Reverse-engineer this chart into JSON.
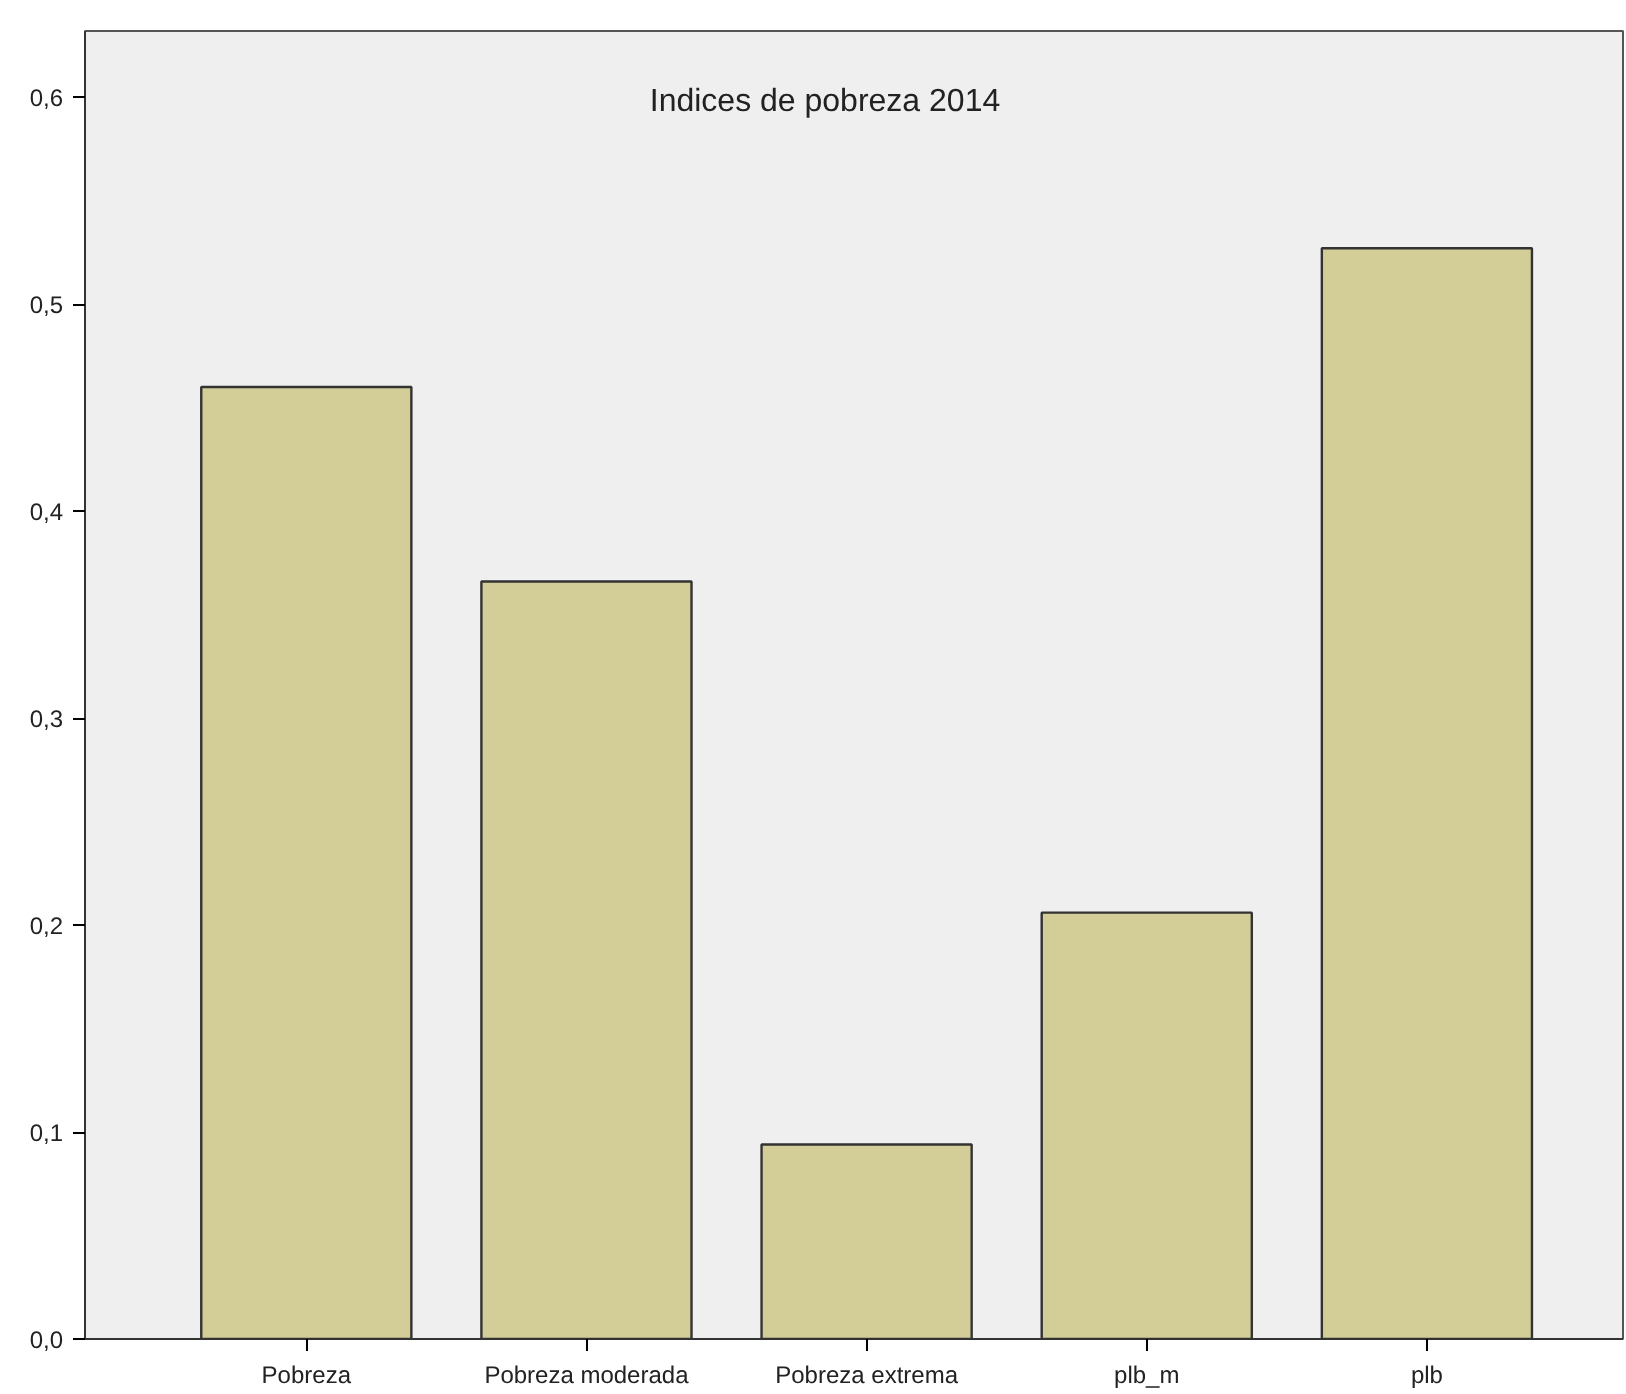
{
  "chart_data": {
    "type": "bar",
    "title": "Indices de pobreza 2014",
    "categories": [
      "Pobreza",
      "Pobreza moderada",
      "Pobreza extrema",
      "plb_m",
      "plb"
    ],
    "values": [
      0.46,
      0.366,
      0.094,
      0.206,
      0.527
    ],
    "color": "#d3ce97",
    "ylim": [
      0,
      0.632
    ],
    "yticks": [
      {
        "value": 0,
        "label": "0,0"
      },
      {
        "value": 0.1,
        "label": "0,1"
      },
      {
        "value": 0.2,
        "label": "0,2"
      },
      {
        "value": 0.3,
        "label": "0,3"
      },
      {
        "value": 0.4,
        "label": "0,4"
      },
      {
        "value": 0.5,
        "label": "0,5"
      },
      {
        "value": 0.6,
        "label": "0,6"
      }
    ],
    "grid": false
  }
}
